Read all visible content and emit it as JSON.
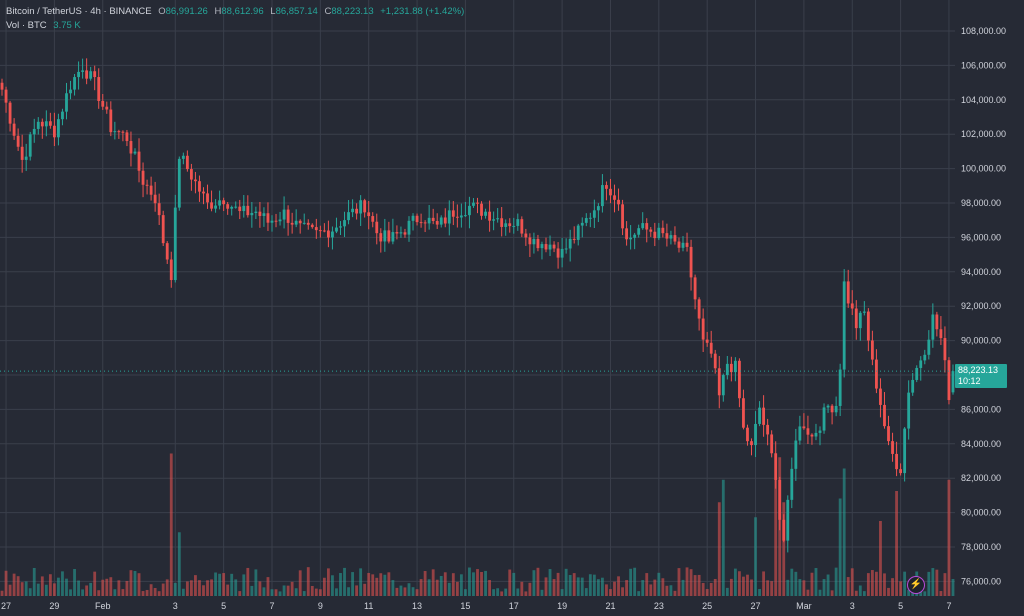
{
  "legend": {
    "symbol": "Bitcoin / TetherUS · 4h · BINANCE",
    "open_label": "O",
    "open": "86,991.26",
    "high_label": "H",
    "high": "88,612.96",
    "low_label": "L",
    "low": "86,857.14",
    "close_label": "C",
    "close": "88,223.13",
    "change": "+1,231.88 (+1.42%)",
    "volume_label": "Vol · BTC",
    "volume": "3.75 K"
  },
  "last_price": {
    "value": "88,223.13",
    "countdown": "10:12"
  },
  "bolt_icon": "⚡",
  "chart_data": {
    "type": "candlestick",
    "symbol": "BTCUSDT",
    "interval": "4h",
    "exchange": "BINANCE",
    "ylim": [
      75000,
      109500
    ],
    "yticks": [
      76000,
      78000,
      80000,
      82000,
      84000,
      86000,
      88000,
      90000,
      92000,
      94000,
      96000,
      98000,
      100000,
      102000,
      104000,
      106000,
      108000
    ],
    "ytick_labels": [
      "76,000.00",
      "78,000.00",
      "80,000.00",
      "82,000.00",
      "84,000.00",
      "86,000.00",
      "88,000.00",
      "90,000.00",
      "92,000.00",
      "94,000.00",
      "96,000.00",
      "98,000.00",
      "100,000.00",
      "102,000.00",
      "104,000.00",
      "106,000.00",
      "108,000.00"
    ],
    "xticks": [
      {
        "label": "27",
        "index": 1
      },
      {
        "label": "29",
        "index": 13
      },
      {
        "label": "Feb",
        "index": 25
      },
      {
        "label": "3",
        "index": 43
      },
      {
        "label": "5",
        "index": 55
      },
      {
        "label": "7",
        "index": 67
      },
      {
        "label": "9",
        "index": 79
      },
      {
        "label": "11",
        "index": 91
      },
      {
        "label": "13",
        "index": 103
      },
      {
        "label": "15",
        "index": 115
      },
      {
        "label": "17",
        "index": 127
      },
      {
        "label": "19",
        "index": 139
      },
      {
        "label": "21",
        "index": 151
      },
      {
        "label": "23",
        "index": 163
      },
      {
        "label": "25",
        "index": 175
      },
      {
        "label": "27",
        "index": 187
      },
      {
        "label": "Mar",
        "index": 199
      },
      {
        "label": "3",
        "index": 211
      },
      {
        "label": "5",
        "index": 223
      },
      {
        "label": "7",
        "index": 235
      }
    ],
    "volume_scale_max": 40000,
    "colors": {
      "up": "#26a69a",
      "down": "#ef5350",
      "grid": "#3a3f4b",
      "background": "#262a35"
    },
    "anchors": [
      [
        0,
        104600
      ],
      [
        5,
        100500
      ],
      [
        9,
        102800
      ],
      [
        13,
        102200
      ],
      [
        17,
        104900
      ],
      [
        20,
        106000
      ],
      [
        23,
        104900
      ],
      [
        27,
        102400
      ],
      [
        31,
        101800
      ],
      [
        35,
        99300
      ],
      [
        38,
        98300
      ],
      [
        40,
        95800
      ],
      [
        42,
        93900
      ],
      [
        44,
        100800
      ],
      [
        47,
        99600
      ],
      [
        51,
        97900
      ],
      [
        55,
        98300
      ],
      [
        59,
        97400
      ],
      [
        63,
        97500
      ],
      [
        66,
        96900
      ],
      [
        70,
        97400
      ],
      [
        74,
        96500
      ],
      [
        78,
        96200
      ],
      [
        82,
        96500
      ],
      [
        86,
        97300
      ],
      [
        90,
        97900
      ],
      [
        93,
        96300
      ],
      [
        96,
        95800
      ],
      [
        100,
        96500
      ],
      [
        104,
        97300
      ],
      [
        108,
        96600
      ],
      [
        112,
        97500
      ],
      [
        116,
        97800
      ],
      [
        120,
        97500
      ],
      [
        124,
        97000
      ],
      [
        128,
        96800
      ],
      [
        132,
        95800
      ],
      [
        136,
        95600
      ],
      [
        139,
        95100
      ],
      [
        143,
        96300
      ],
      [
        147,
        97700
      ],
      [
        150,
        99200
      ],
      [
        153,
        98100
      ],
      [
        155,
        95800
      ],
      [
        158,
        96500
      ],
      [
        161,
        96400
      ],
      [
        164,
        96100
      ],
      [
        167,
        95600
      ],
      [
        170,
        95100
      ],
      [
        172,
        92400
      ],
      [
        174,
        89800
      ],
      [
        176,
        89200
      ],
      [
        178,
        86700
      ],
      [
        180,
        88700
      ],
      [
        182,
        88400
      ],
      [
        184,
        84800
      ],
      [
        186,
        83700
      ],
      [
        188,
        86100
      ],
      [
        190,
        84200
      ],
      [
        192,
        82300
      ],
      [
        193,
        79700
      ],
      [
        194,
        78400
      ],
      [
        195,
        80300
      ],
      [
        197,
        84500
      ],
      [
        199,
        85200
      ],
      [
        201,
        84400
      ],
      [
        203,
        85200
      ],
      [
        205,
        86200
      ],
      [
        207,
        86300
      ],
      [
        208,
        88600
      ],
      [
        209,
        93300
      ],
      [
        210,
        92400
      ],
      [
        212,
        90900
      ],
      [
        214,
        91600
      ],
      [
        216,
        88600
      ],
      [
        218,
        86400
      ],
      [
        220,
        83800
      ],
      [
        222,
        82900
      ],
      [
        223,
        82600
      ],
      [
        225,
        87200
      ],
      [
        227,
        88400
      ],
      [
        229,
        89600
      ],
      [
        231,
        91300
      ],
      [
        233,
        90100
      ],
      [
        235,
        86900
      ],
      [
        236,
        88300
      ]
    ],
    "volume_spikes": [
      [
        42,
        38000
      ],
      [
        44,
        17000
      ],
      [
        178,
        25000
      ],
      [
        179,
        31000
      ],
      [
        187,
        21000
      ],
      [
        192,
        31000
      ],
      [
        193,
        37000
      ],
      [
        194,
        25000
      ],
      [
        208,
        26000
      ],
      [
        209,
        34000
      ],
      [
        218,
        20000
      ],
      [
        222,
        28000
      ],
      [
        235,
        31000
      ]
    ],
    "last_candle": {
      "open": 86991.26,
      "high": 88612.96,
      "low": 86857.14,
      "close": 88223.13
    }
  }
}
